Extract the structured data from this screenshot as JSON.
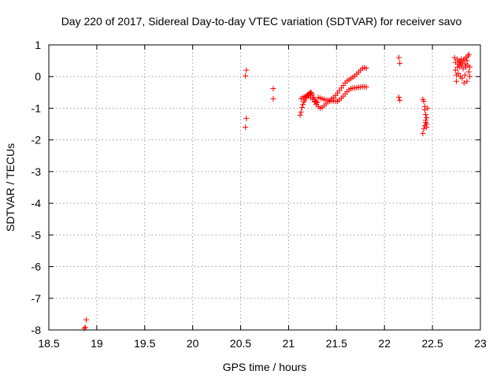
{
  "chart_data": {
    "type": "scatter",
    "title": "Day 220 of 2017, Sidereal Day-to-day VTEC variation (SDTVAR) for receiver savo",
    "xlabel": "GPS time / hours",
    "ylabel": "SDTVAR / TECUs",
    "xlim": [
      18.5,
      23
    ],
    "ylim": [
      -8,
      1
    ],
    "x_ticks": [
      "18.5",
      "19",
      "19.5",
      "20",
      "20.5",
      "21",
      "21.5",
      "22",
      "22.5",
      "23"
    ],
    "y_ticks": [
      "1",
      "0",
      "-1",
      "-2",
      "-3",
      "-4",
      "-5",
      "-6",
      "-7",
      "-8"
    ],
    "grid": true,
    "marker": "+",
    "color": "#ff0000",
    "series": [
      {
        "points": [
          [
            18.87,
            -7.95
          ],
          [
            18.88,
            -7.92
          ],
          [
            18.89,
            -7.68
          ],
          [
            20.55,
            0.02
          ],
          [
            20.56,
            0.2
          ],
          [
            20.56,
            -1.32
          ],
          [
            20.55,
            -1.6
          ],
          [
            20.84,
            -0.38
          ],
          [
            20.84,
            -0.7
          ],
          [
            21.12,
            -1.22
          ],
          [
            21.13,
            -1.12
          ],
          [
            21.14,
            -0.98
          ],
          [
            21.15,
            -0.88
          ],
          [
            21.16,
            -0.8
          ],
          [
            21.17,
            -0.74
          ],
          [
            21.18,
            -0.68
          ],
          [
            21.19,
            -0.62
          ],
          [
            21.2,
            -0.58
          ],
          [
            21.21,
            -0.55
          ],
          [
            21.22,
            -0.52
          ],
          [
            21.23,
            -0.5
          ],
          [
            21.24,
            -0.52
          ],
          [
            21.25,
            -0.58
          ],
          [
            21.26,
            -0.66
          ],
          [
            21.27,
            -0.72
          ],
          [
            21.28,
            -0.78
          ],
          [
            21.29,
            -0.8
          ],
          [
            21.3,
            -0.82
          ],
          [
            21.13,
            -0.7
          ],
          [
            21.15,
            -0.65
          ],
          [
            21.17,
            -0.63
          ],
          [
            21.19,
            -0.6
          ],
          [
            21.21,
            -0.62
          ],
          [
            21.23,
            -0.66
          ],
          [
            21.25,
            -0.72
          ],
          [
            21.27,
            -0.8
          ],
          [
            21.29,
            -0.88
          ],
          [
            21.31,
            -0.95
          ],
          [
            21.33,
            -1.0
          ],
          [
            21.35,
            -0.98
          ],
          [
            21.37,
            -0.92
          ],
          [
            21.39,
            -0.86
          ],
          [
            21.41,
            -0.8
          ],
          [
            21.43,
            -0.78
          ],
          [
            21.31,
            -0.66
          ],
          [
            21.33,
            -0.68
          ],
          [
            21.35,
            -0.7
          ],
          [
            21.37,
            -0.72
          ],
          [
            21.39,
            -0.74
          ],
          [
            21.41,
            -0.74
          ],
          [
            21.43,
            -0.75
          ],
          [
            21.45,
            -0.76
          ],
          [
            21.47,
            -0.77
          ],
          [
            21.49,
            -0.78
          ],
          [
            21.51,
            -0.78
          ],
          [
            21.53,
            -0.74
          ],
          [
            21.55,
            -0.68
          ],
          [
            21.57,
            -0.62
          ],
          [
            21.59,
            -0.55
          ],
          [
            21.61,
            -0.48
          ],
          [
            21.63,
            -0.42
          ],
          [
            21.65,
            -0.38
          ],
          [
            21.67,
            -0.36
          ],
          [
            21.69,
            -0.36
          ],
          [
            21.71,
            -0.35
          ],
          [
            21.73,
            -0.34
          ],
          [
            21.75,
            -0.33
          ],
          [
            21.77,
            -0.32
          ],
          [
            21.79,
            -0.32
          ],
          [
            21.81,
            -0.33
          ],
          [
            21.45,
            -0.7
          ],
          [
            21.47,
            -0.66
          ],
          [
            21.49,
            -0.6
          ],
          [
            21.51,
            -0.52
          ],
          [
            21.53,
            -0.44
          ],
          [
            21.55,
            -0.36
          ],
          [
            21.57,
            -0.28
          ],
          [
            21.59,
            -0.2
          ],
          [
            21.61,
            -0.14
          ],
          [
            21.63,
            -0.1
          ],
          [
            21.65,
            -0.06
          ],
          [
            21.67,
            -0.02
          ],
          [
            21.69,
            0.02
          ],
          [
            21.71,
            0.08
          ],
          [
            21.73,
            0.14
          ],
          [
            21.75,
            0.2
          ],
          [
            21.77,
            0.26
          ],
          [
            21.79,
            0.28
          ],
          [
            21.81,
            0.26
          ],
          [
            22.15,
            0.6
          ],
          [
            22.16,
            0.42
          ],
          [
            22.15,
            -0.65
          ],
          [
            22.16,
            -0.75
          ],
          [
            22.4,
            -0.72
          ],
          [
            22.41,
            -0.78
          ],
          [
            22.42,
            -0.95
          ],
          [
            22.42,
            -1.05
          ],
          [
            22.43,
            -1.2
          ],
          [
            22.43,
            -1.38
          ],
          [
            22.44,
            -1.5
          ],
          [
            22.44,
            -1.6
          ],
          [
            22.42,
            -1.55
          ],
          [
            22.41,
            -1.65
          ],
          [
            22.4,
            -1.8
          ],
          [
            22.43,
            -1.45
          ],
          [
            22.44,
            -1.3
          ],
          [
            22.45,
            -1.0
          ],
          [
            22.73,
            0.6
          ],
          [
            22.74,
            0.45
          ],
          [
            22.74,
            0.2
          ],
          [
            22.75,
            0.05
          ],
          [
            22.75,
            -0.15
          ],
          [
            22.76,
            0.3
          ],
          [
            22.76,
            0.55
          ],
          [
            22.77,
            0.4
          ],
          [
            22.77,
            0.1
          ],
          [
            22.78,
            0.5
          ],
          [
            22.78,
            0.3
          ],
          [
            22.79,
            0.45
          ],
          [
            22.79,
            0.0
          ],
          [
            22.8,
            0.35
          ],
          [
            22.8,
            0.55
          ],
          [
            22.81,
            0.4
          ],
          [
            22.81,
            -0.05
          ],
          [
            22.82,
            0.5
          ],
          [
            22.82,
            0.25
          ],
          [
            22.83,
            -0.2
          ],
          [
            22.83,
            0.55
          ],
          [
            22.84,
            0.4
          ],
          [
            22.84,
            0.05
          ],
          [
            22.85,
            0.6
          ],
          [
            22.85,
            0.3
          ],
          [
            22.86,
            0.5
          ],
          [
            22.86,
            -0.15
          ],
          [
            22.87,
            0.65
          ],
          [
            22.87,
            0.35
          ],
          [
            22.88,
            0.7
          ],
          [
            22.88,
            0.15
          ],
          [
            22.89,
            0.3
          ],
          [
            22.89,
            0.0
          ]
        ]
      }
    ]
  }
}
